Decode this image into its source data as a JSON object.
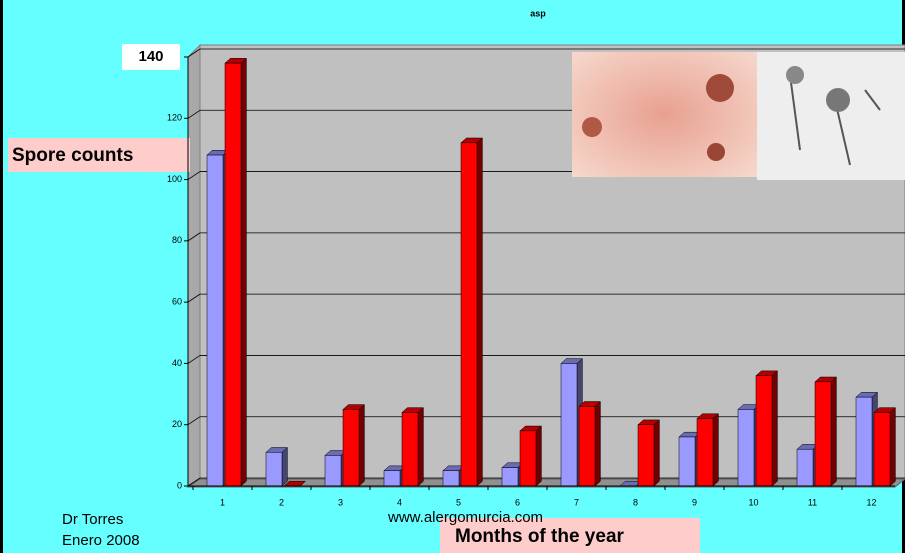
{
  "chart_data": {
    "type": "bar3d",
    "title": "asp",
    "y_label": "Spore counts",
    "x_label": "Months of the year",
    "categories": [
      "1",
      "2",
      "3",
      "4",
      "5",
      "6",
      "7",
      "8",
      "9",
      "10",
      "11",
      "12"
    ],
    "series": [
      {
        "color": "#9999ff",
        "values": [
          108,
          11,
          10,
          5,
          5,
          6,
          40,
          0,
          16,
          25,
          12,
          29
        ]
      },
      {
        "color": "#ff0000",
        "values": [
          138,
          0,
          25,
          24,
          112,
          18,
          26,
          20,
          22,
          36,
          34,
          24
        ]
      }
    ],
    "ylim": [
      0,
      140
    ],
    "yticks": [
      0,
      20,
      40,
      60,
      80,
      100,
      120,
      140
    ],
    "grid": true,
    "author": "Dr Torres",
    "date": "Enero 2008",
    "website": "www.alergomurcia.com"
  }
}
